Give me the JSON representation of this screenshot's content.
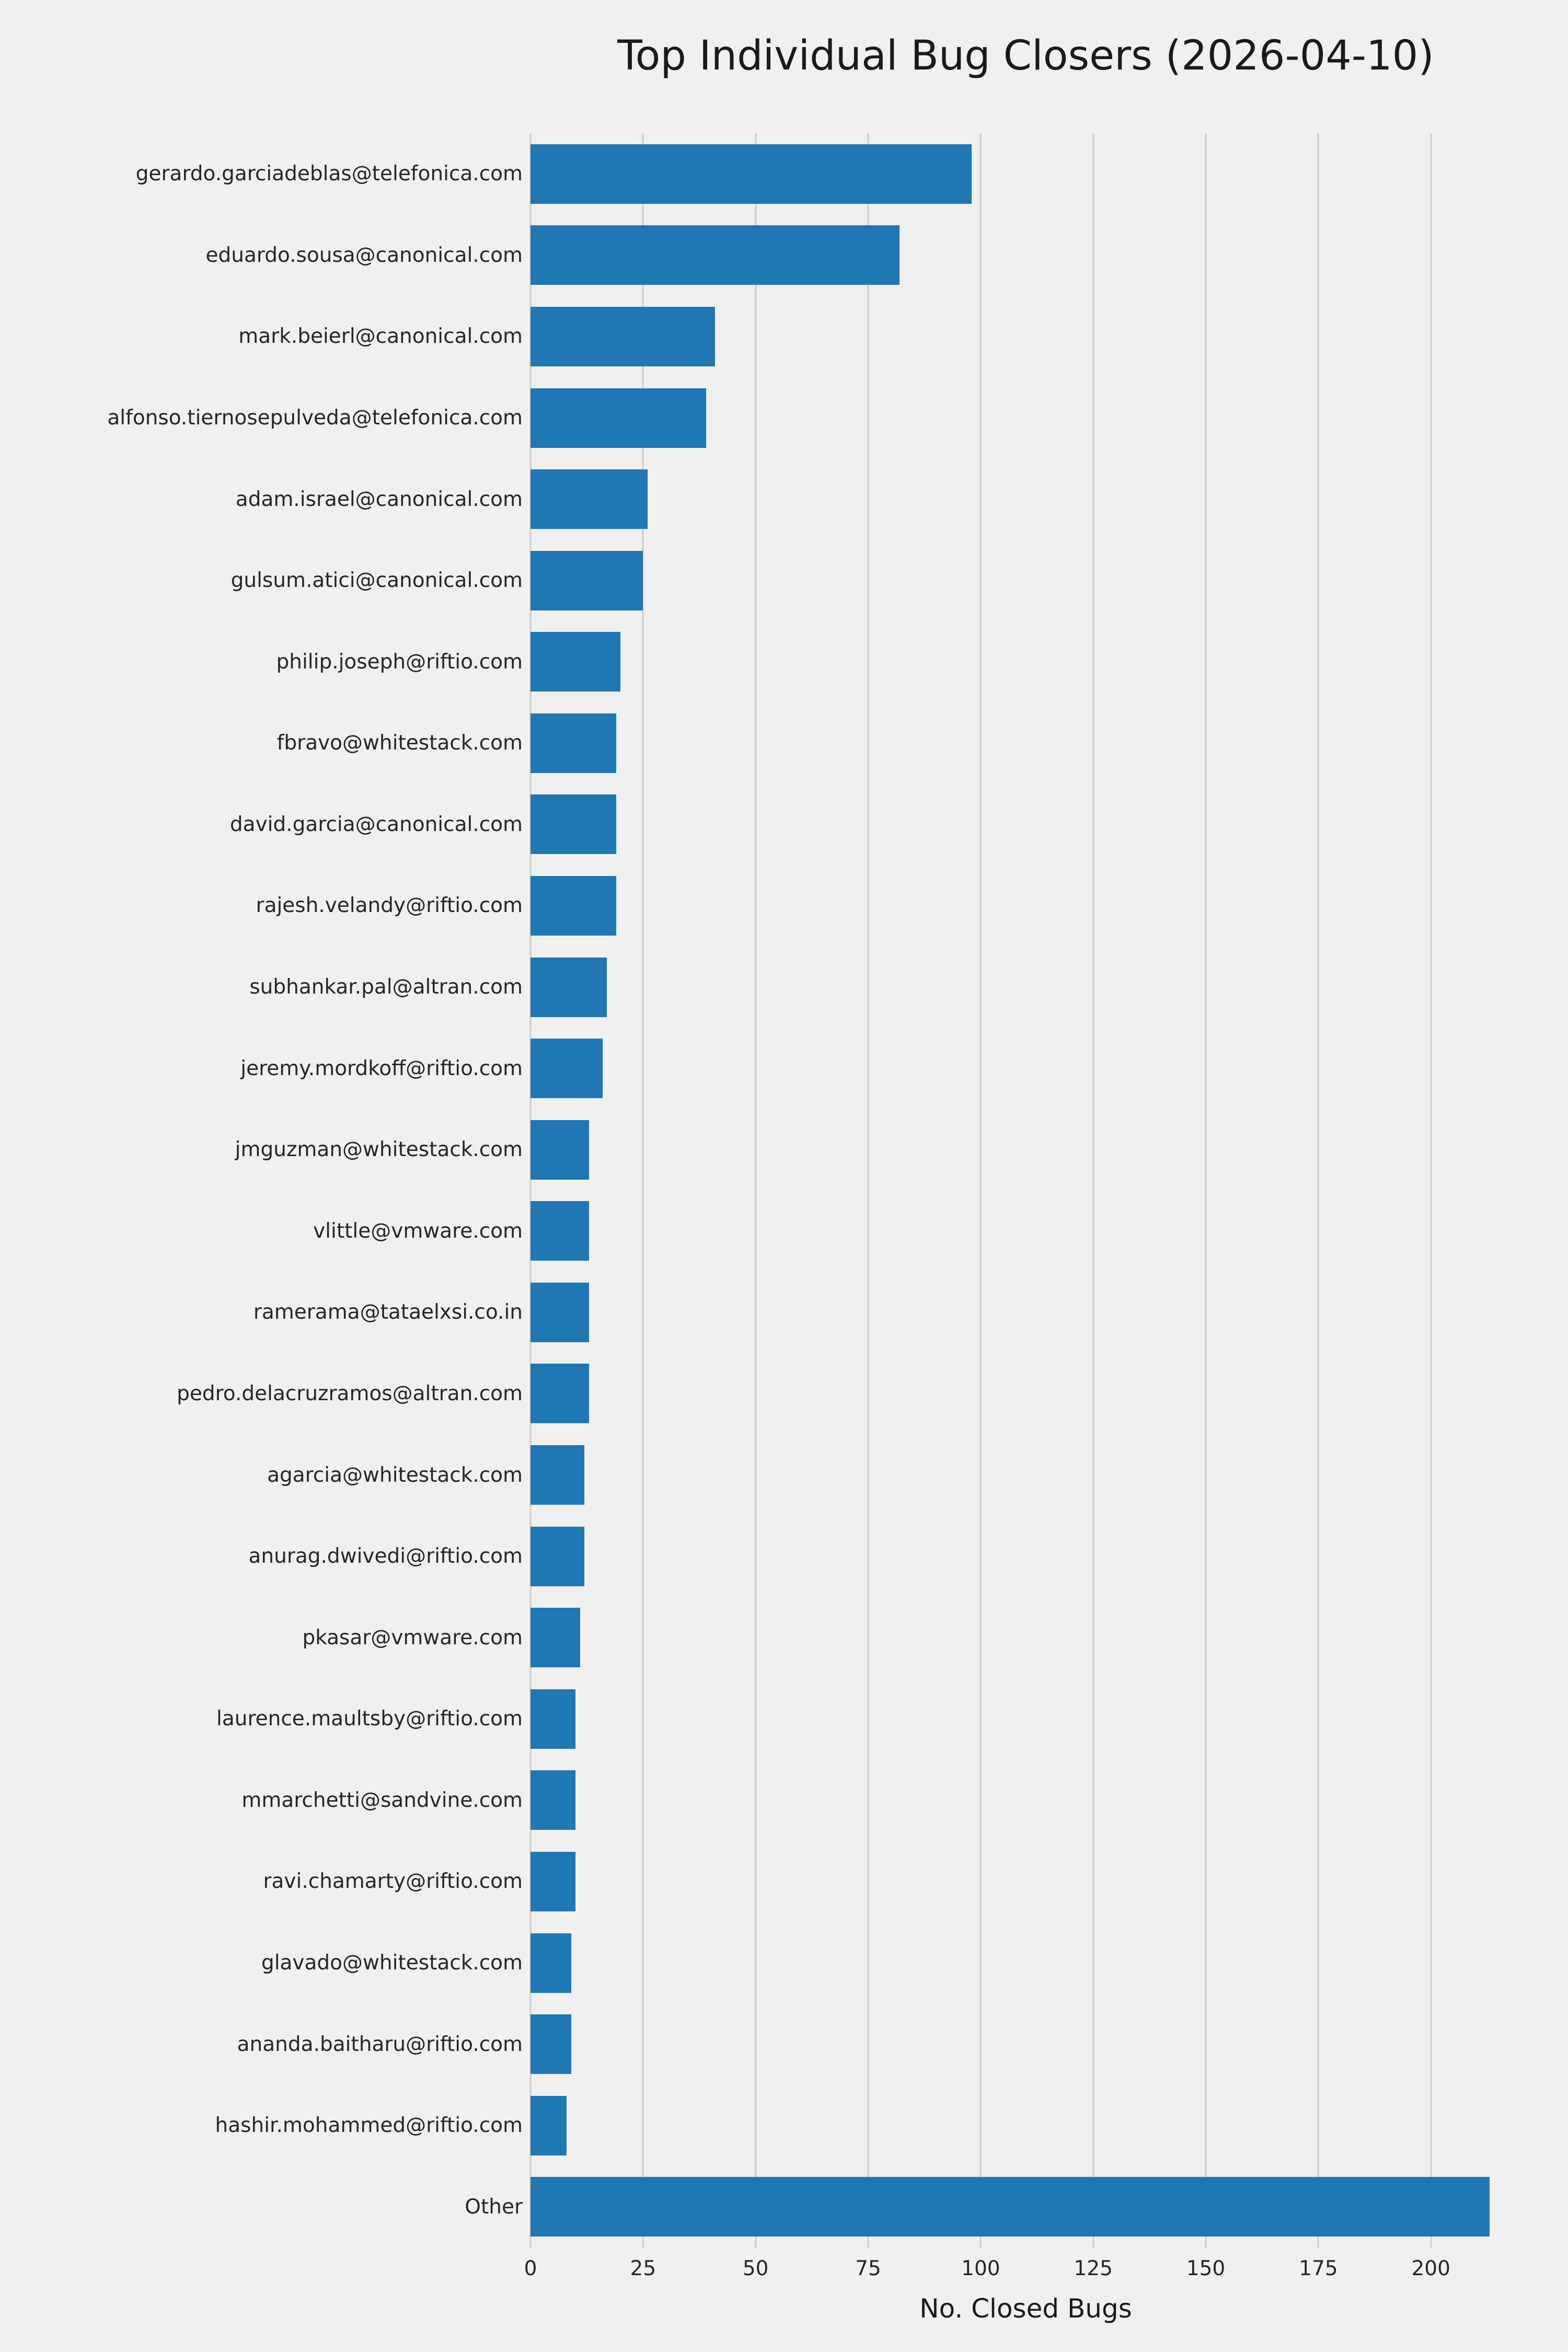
{
  "page": {
    "background_color": "#f0f0f0",
    "grid_color": "#cccccc",
    "text_color": "#262626"
  },
  "chart_data": {
    "type": "bar",
    "orientation": "horizontal",
    "title": "Top Individual Bug Closers (2026-04-10)",
    "xlabel": "No. Closed Bugs",
    "ylabel": "",
    "bar_color": "#1f77b4",
    "grid": true,
    "legend": "none",
    "xlim": [
      0,
      220
    ],
    "xticks": [
      0,
      25,
      50,
      75,
      100,
      125,
      150,
      175,
      200
    ],
    "categories": [
      "gerardo.garciadeblas@telefonica.com",
      "eduardo.sousa@canonical.com",
      "mark.beierl@canonical.com",
      "alfonso.tiernosepulveda@telefonica.com",
      "adam.israel@canonical.com",
      "gulsum.atici@canonical.com",
      "philip.joseph@riftio.com",
      "fbravo@whitestack.com",
      "david.garcia@canonical.com",
      "rajesh.velandy@riftio.com",
      "subhankar.pal@altran.com",
      "jeremy.mordkoff@riftio.com",
      "jmguzman@whitestack.com",
      "vlittle@vmware.com",
      "ramerama@tataelxsi.co.in",
      "pedro.delacruzramos@altran.com",
      "agarcia@whitestack.com",
      "anurag.dwivedi@riftio.com",
      "pkasar@vmware.com",
      "laurence.maultsby@riftio.com",
      "mmarchetti@sandvine.com",
      "ravi.chamarty@riftio.com",
      "glavado@whitestack.com",
      "ananda.baitharu@riftio.com",
      "hashir.mohammed@riftio.com",
      "Other"
    ],
    "values": [
      98,
      82,
      41,
      39,
      26,
      25,
      20,
      19,
      19,
      19,
      17,
      16,
      13,
      13,
      13,
      13,
      12,
      12,
      11,
      10,
      10,
      10,
      9,
      9,
      8,
      213
    ]
  }
}
